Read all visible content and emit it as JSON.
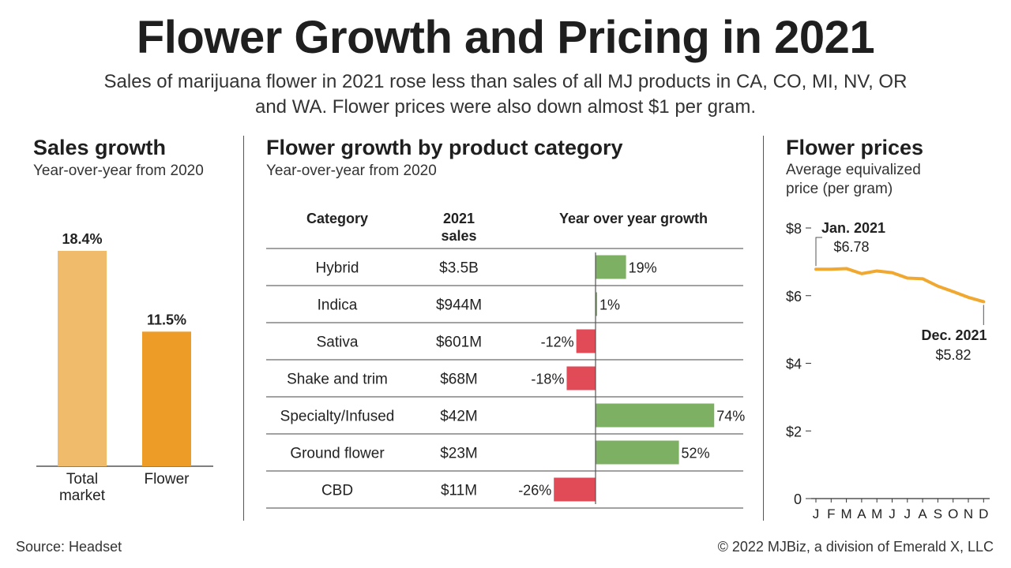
{
  "header": {
    "title": "Flower Growth and Pricing in 2021",
    "subtitle": "Sales of marijuana flower in 2021 rose less than sales of all MJ products in CA, CO, MI, NV, OR and WA. Flower prices were also down almost $1 per gram."
  },
  "colors": {
    "total_bar": "#f0bc6c",
    "flower_bar": "#ec9c27",
    "positive": "#7db063",
    "negative": "#e14a57",
    "price_line": "#f0a830"
  },
  "sales_growth": {
    "title": "Sales growth",
    "subtitle": "Year-over-year from 2020"
  },
  "category": {
    "title": "Flower growth by product category",
    "subtitle": "Year-over-year from 2020",
    "col_category": "Category",
    "col_sales_line1": "2021",
    "col_sales_line2": "sales",
    "col_growth": "Year over year growth"
  },
  "prices": {
    "title": "Flower prices",
    "subtitle_line1": "Average equivalized",
    "subtitle_line2": "price (per gram)"
  },
  "footer": {
    "source": "Source: Headset",
    "credit": "© 2022 MJBiz, a division of Emerald X, LLC"
  },
  "chart_data": [
    {
      "type": "bar",
      "title": "Sales growth",
      "subtitle": "Year-over-year from 2020",
      "categories": [
        [
          "Total",
          "market"
        ],
        [
          "Flower"
        ]
      ],
      "values": [
        18.4,
        11.5
      ],
      "value_labels": [
        "18.4%",
        "11.5%"
      ],
      "ylim": [
        0,
        20
      ]
    },
    {
      "type": "table",
      "title": "Flower growth by product category",
      "subtitle": "Year-over-year from 2020",
      "rows": [
        {
          "category": "Hybrid",
          "sales": "$3.5B",
          "growth": 19,
          "label": "19%"
        },
        {
          "category": "Indica",
          "sales": "$944M",
          "growth": 1,
          "label": "1%"
        },
        {
          "category": "Sativa",
          "sales": "$601M",
          "growth": -12,
          "label": "-12%"
        },
        {
          "category": "Shake and trim",
          "sales": "$68M",
          "growth": -18,
          "label": "-18%"
        },
        {
          "category": "Specialty/Infused",
          "sales": "$42M",
          "growth": 74,
          "label": "74%"
        },
        {
          "category": "Ground flower",
          "sales": "$23M",
          "growth": 52,
          "label": "52%"
        },
        {
          "category": "CBD",
          "sales": "$11M",
          "growth": -26,
          "label": "-26%"
        }
      ]
    },
    {
      "type": "line",
      "title": "Flower prices",
      "x": [
        "J",
        "F",
        "M",
        "A",
        "M",
        "J",
        "J",
        "A",
        "S",
        "O",
        "N",
        "D"
      ],
      "values": [
        6.78,
        6.78,
        6.8,
        6.65,
        6.73,
        6.68,
        6.52,
        6.5,
        6.28,
        6.12,
        5.95,
        5.82
      ],
      "ylim": [
        0,
        8
      ],
      "yticks": [
        0,
        2,
        4,
        6,
        8
      ],
      "ytick_labels": [
        "0",
        "$2",
        "$4",
        "$6",
        "$8"
      ],
      "annotations": [
        {
          "index": 0,
          "label": "Jan. 2021",
          "value_label": "$6.78"
        },
        {
          "index": 11,
          "label": "Dec. 2021",
          "value_label": "$5.82"
        }
      ]
    }
  ]
}
